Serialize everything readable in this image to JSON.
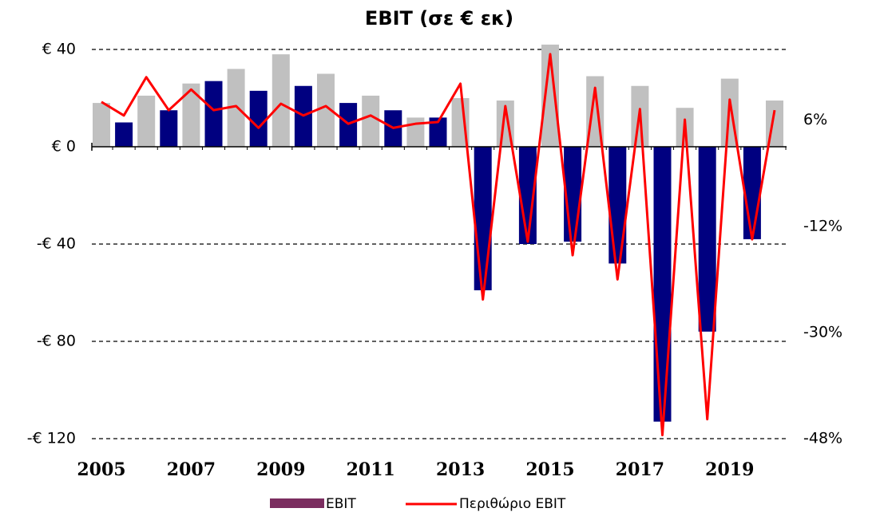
{
  "chart_data": {
    "type": "bar_line",
    "title": "EBIT (σε € εκ)",
    "categories": [
      "2005",
      null,
      null,
      null,
      "2007",
      null,
      null,
      null,
      "2009",
      null,
      null,
      null,
      "2011",
      null,
      null,
      null,
      "2013",
      null,
      null,
      null,
      "2015",
      null,
      null,
      null,
      "2017",
      null,
      null,
      null,
      "2019",
      null,
      null
    ],
    "series": [
      {
        "name": "EBIT",
        "color": "#7b2e60",
        "type": "bar",
        "bar_colors": [
          "#c0c0c0",
          "#000080",
          "#c0c0c0",
          "#000080",
          "#c0c0c0",
          "#000080",
          "#c0c0c0",
          "#000080",
          "#c0c0c0",
          "#000080",
          "#c0c0c0",
          "#000080",
          "#c0c0c0",
          "#000080",
          "#c0c0c0",
          "#000080",
          "#c0c0c0",
          "#000080",
          "#c0c0c0",
          "#000080",
          "#c0c0c0",
          "#000080",
          "#c0c0c0",
          "#000080",
          "#c0c0c0",
          "#000080",
          "#c0c0c0",
          "#000080",
          "#c0c0c0",
          "#000080",
          "#c0c0c0"
        ],
        "values": [
          18,
          10,
          21,
          15,
          26,
          27,
          32,
          23,
          38,
          25,
          30,
          18,
          21,
          15,
          12,
          12,
          20,
          -59,
          19,
          -40,
          42,
          -39,
          29,
          -48,
          25,
          -113,
          16,
          -76,
          28,
          -38,
          19
        ]
      },
      {
        "name": "Περιθώριο EBIT",
        "color": "#ff0000",
        "type": "line",
        "axis": "y2",
        "values": [
          9.1,
          6.8,
          13.3,
          7.7,
          11.2,
          7.7,
          8.4,
          4.7,
          8.8,
          6.8,
          8.4,
          5.4,
          6.8,
          4.7,
          5.4,
          5.7,
          12.2,
          -24.4,
          8.4,
          -14.6,
          17.2,
          -16.9,
          11.5,
          -21,
          7.9,
          -47.4,
          6.1,
          -44.7,
          9.5,
          -14.2,
          7.7
        ]
      }
    ],
    "ylim": [
      -120,
      40
    ],
    "yticks": [
      {
        "value": 40,
        "label": "€ 40"
      },
      {
        "value": 0,
        "label": "€ 0"
      },
      {
        "value": -40,
        "label": "-€ 40"
      },
      {
        "value": -80,
        "label": "-€ 80"
      },
      {
        "value": -120,
        "label": "-€ 120"
      }
    ],
    "y2lim": [
      -48,
      18
    ],
    "y2ticks": [
      {
        "value": 6,
        "label": "6%"
      },
      {
        "value": -12,
        "label": "-12%"
      },
      {
        "value": -30,
        "label": "-30%"
      },
      {
        "value": -48,
        "label": "-48%"
      }
    ],
    "grid": true,
    "legend": "bottom"
  }
}
